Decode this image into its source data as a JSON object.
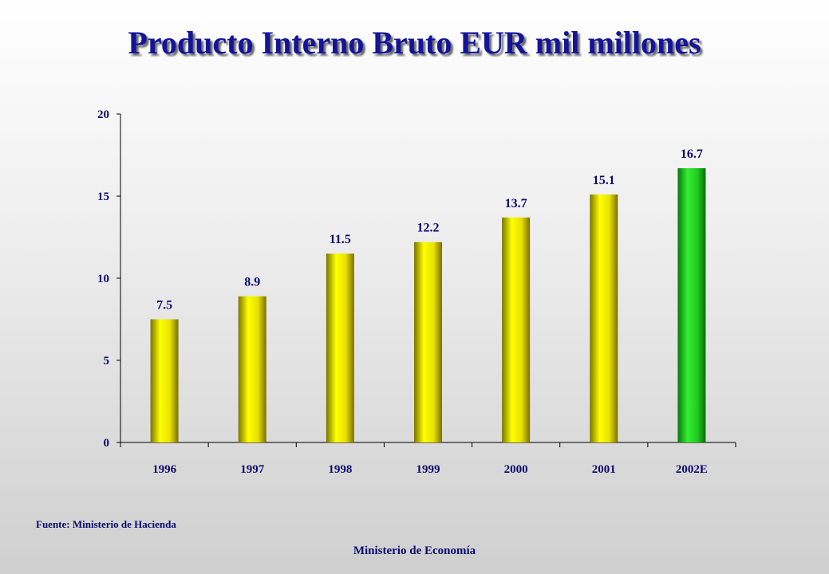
{
  "title": "Producto Interno Bruto EUR mil millones",
  "source": "Fuente: Ministerio  de Hacienda",
  "footer": "Ministerio de Economía",
  "colors": {
    "bar": "#ffff00",
    "highlight_bar": "#22dd22",
    "text": "#0a0a6e",
    "title": "#14149a"
  },
  "chart_data": {
    "type": "bar",
    "title": "Producto Interno Bruto EUR mil millones",
    "categories": [
      "1996",
      "1997",
      "1998",
      "1999",
      "2000",
      "2001",
      "2002E"
    ],
    "values": [
      7.5,
      8.9,
      11.5,
      12.2,
      13.7,
      15.1,
      16.7
    ],
    "data_labels": [
      "7.5",
      "8.9",
      "11.5",
      "12.2",
      "13.7",
      "15.1",
      "16.7"
    ],
    "highlight_category": "2002E",
    "ylim": [
      0,
      20
    ],
    "yticks": [
      0,
      5,
      10,
      15,
      20
    ],
    "xlabel": "",
    "ylabel": "",
    "grid": false,
    "legend": "none"
  }
}
